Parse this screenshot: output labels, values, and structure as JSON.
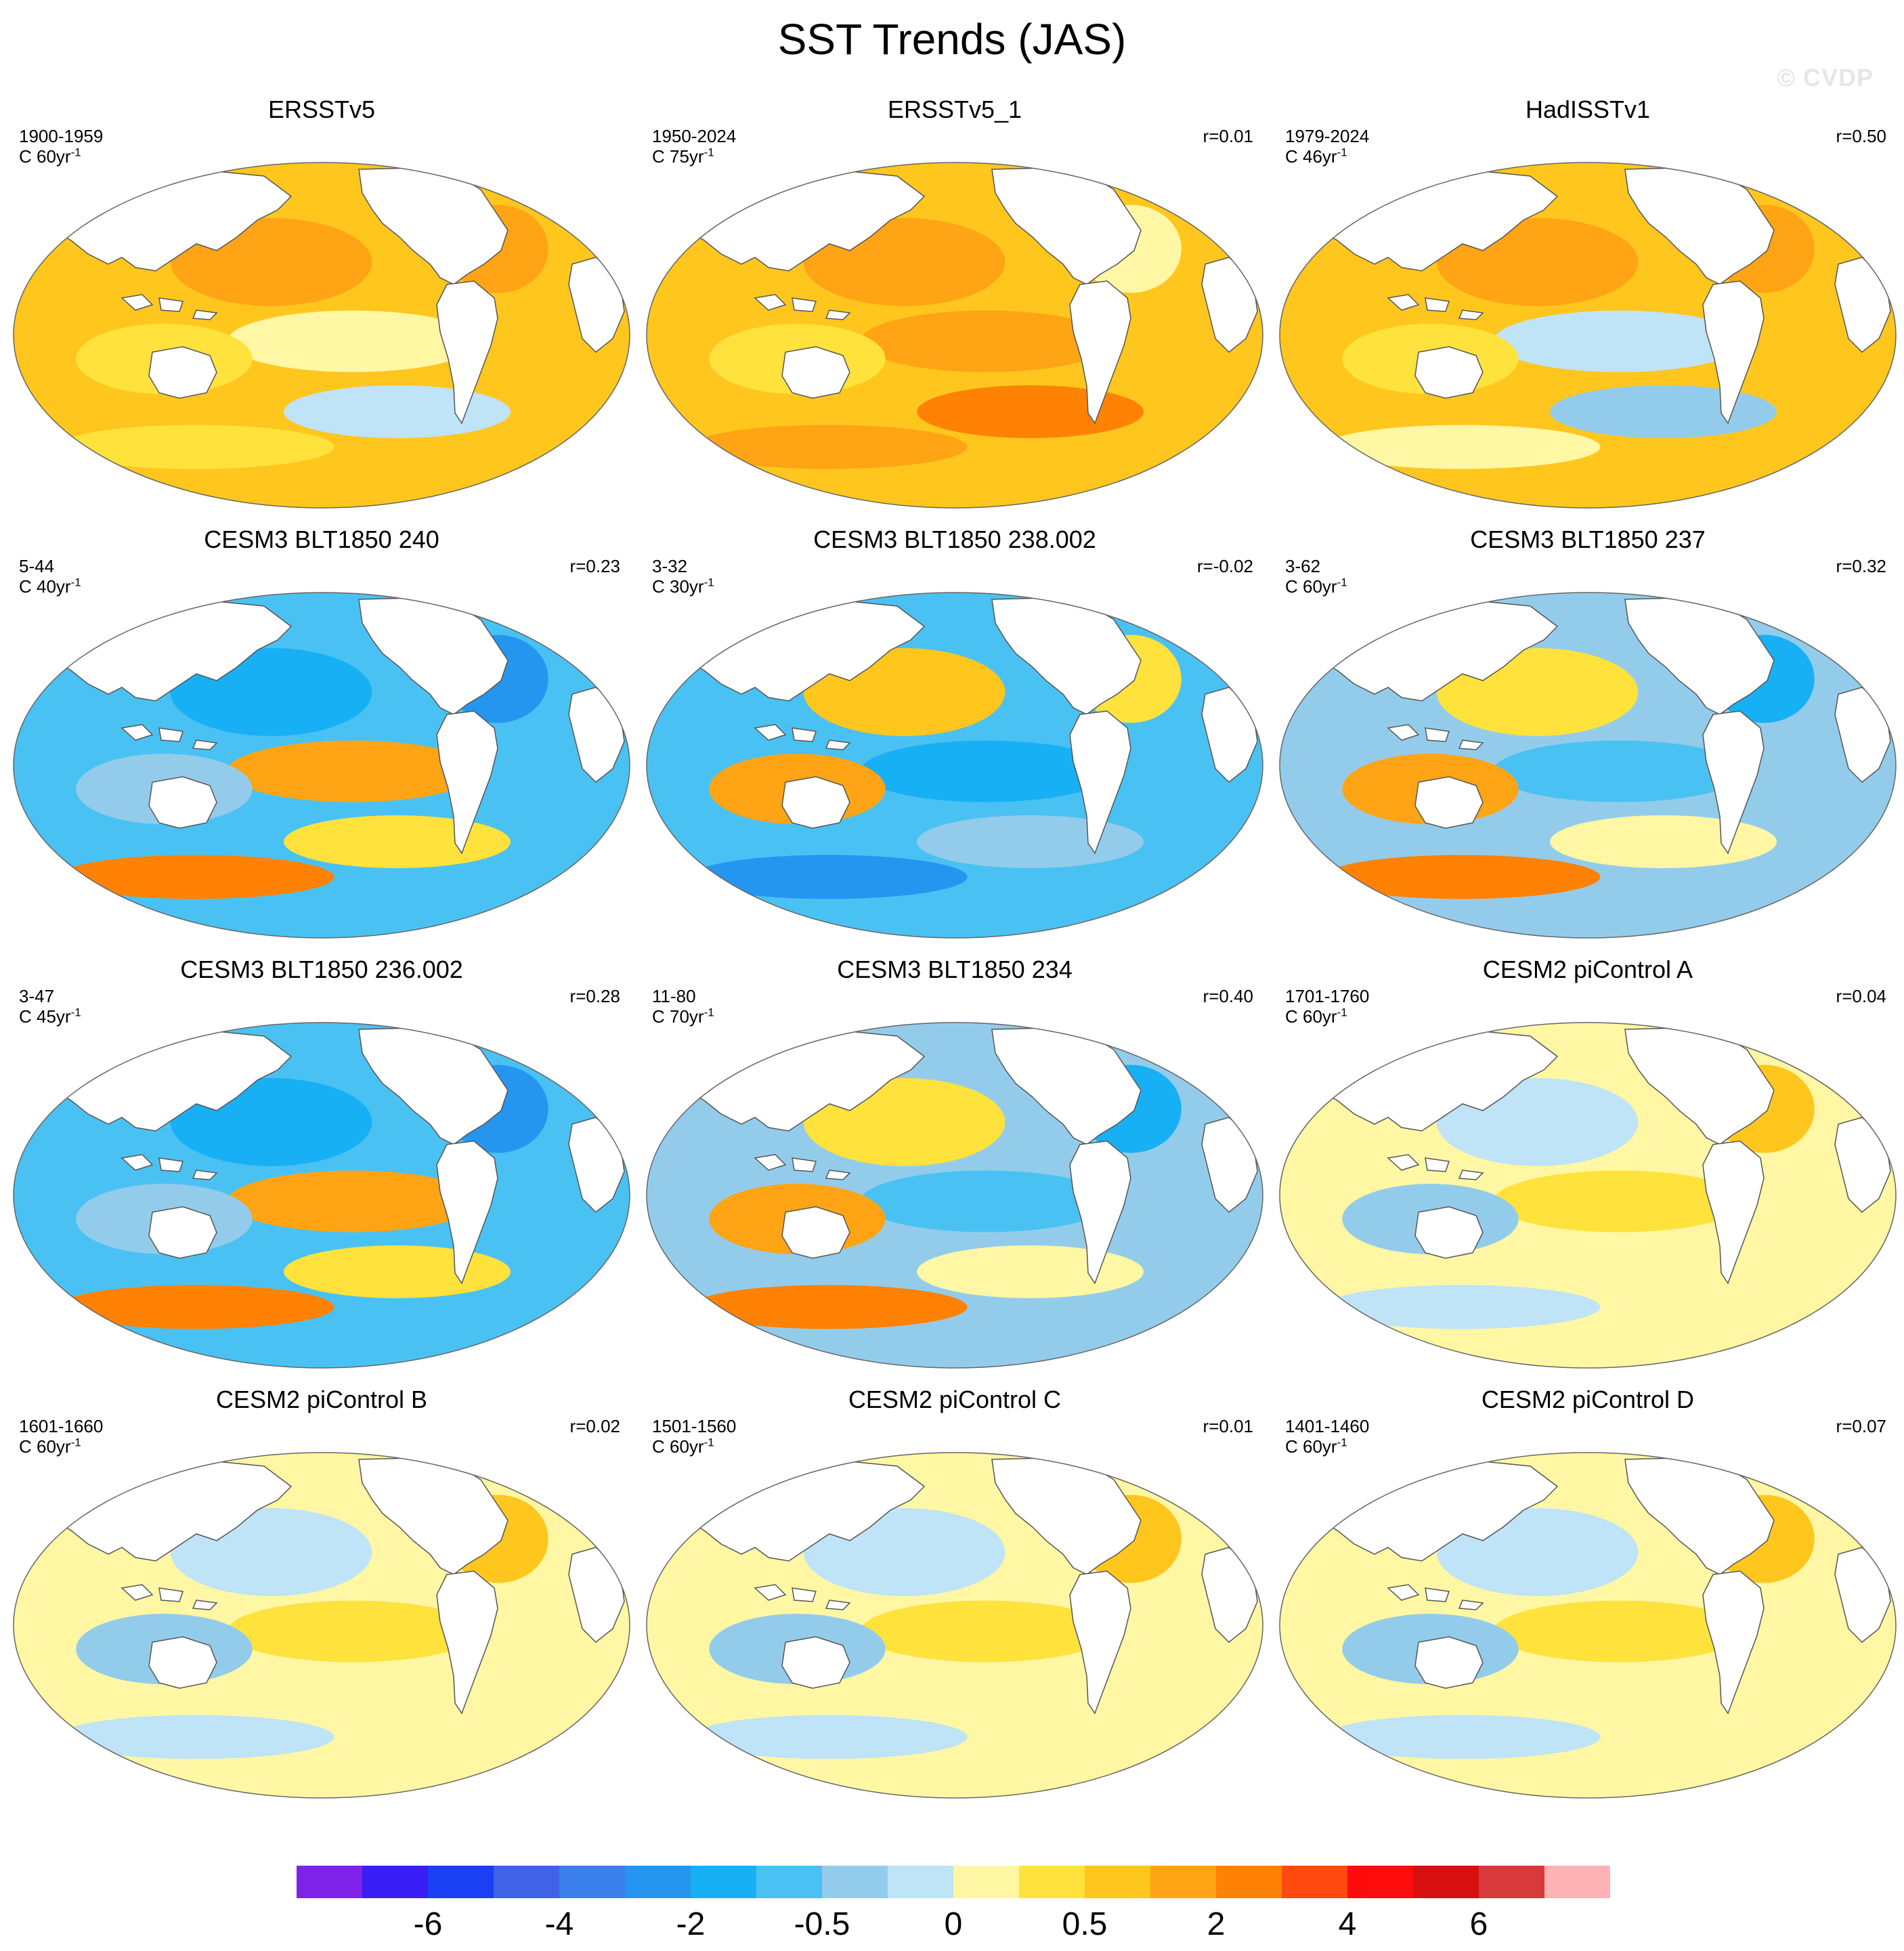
{
  "title": "SST Trends (JAS)",
  "watermark": "© CVDP",
  "units_suffix": "yr",
  "units_exponent": "-1",
  "panels": [
    {
      "title": "ERSSTv5",
      "period": "1900-1959",
      "units": "C 60",
      "corr": "",
      "palette": "warm"
    },
    {
      "title": "ERSSTv5_1",
      "period": "1950-2024",
      "units": "C 75",
      "corr": "r=0.01",
      "palette": "warm2"
    },
    {
      "title": "HadISSTv1",
      "period": "1979-2024",
      "units": "C 46",
      "corr": "r=0.50",
      "palette": "warm3"
    },
    {
      "title": "CESM3 BLT1850 240",
      "period": "5-44",
      "units": "C 40",
      "corr": "r=0.23",
      "palette": "cool"
    },
    {
      "title": "CESM3 BLT1850 238.002",
      "period": "3-32",
      "units": "C 30",
      "corr": "r=-0.02",
      "palette": "mixed"
    },
    {
      "title": "CESM3 BLT1850 237",
      "period": "3-62",
      "units": "C 60",
      "corr": "r=0.32",
      "palette": "mixedcool"
    },
    {
      "title": "CESM3 BLT1850 236.002",
      "period": "3-47",
      "units": "C 45",
      "corr": "r=0.28",
      "palette": "cool"
    },
    {
      "title": "CESM3 BLT1850 234",
      "period": "11-80",
      "units": "C 70",
      "corr": "r=0.40",
      "palette": "mixedcool"
    },
    {
      "title": "CESM2 piControl A",
      "period": "1701-1760",
      "units": "C 60",
      "corr": "r=0.04",
      "palette": "pale"
    },
    {
      "title": "CESM2 piControl B",
      "period": "1601-1660",
      "units": "C 60",
      "corr": "r=0.02",
      "palette": "pale"
    },
    {
      "title": "CESM2 piControl C",
      "period": "1501-1560",
      "units": "C 60",
      "corr": "r=0.01",
      "palette": "pale"
    },
    {
      "title": "CESM2 piControl D",
      "period": "1401-1460",
      "units": "C 60",
      "corr": "r=0.07",
      "palette": "pale"
    }
  ],
  "colorbar": {
    "colors": [
      "#7f22e8",
      "#3a1ef5",
      "#1b3ff2",
      "#3f62e6",
      "#3b7fea",
      "#2596f0",
      "#18b0f5",
      "#4ac1f3",
      "#93cceb",
      "#bfe3f7",
      "#fff7a3",
      "#ffe23c",
      "#ffc61e",
      "#ffa414",
      "#ff8204",
      "#ff4a0f",
      "#ff0b0b",
      "#d60f0f",
      "#d8393b",
      "#ffb2b5"
    ],
    "labels": [
      "-6",
      "-4",
      "-2",
      "-0.5",
      "0",
      "0.5",
      "2",
      "4",
      "6"
    ],
    "label_boundaries": [
      2,
      4,
      6,
      8,
      10,
      12,
      14,
      16,
      18
    ]
  },
  "continent_color": "#ffffff",
  "ocean_palettes": {
    "warm": {
      "base": "#ffc61e",
      "blobs": [
        "#ffa414",
        "#fff7a3",
        "#ffe23c",
        "#bfe3f7",
        "#ffa414",
        "#ffe23c"
      ]
    },
    "warm2": {
      "base": "#ffc61e",
      "blobs": [
        "#ffa414",
        "#ffa414",
        "#ffe23c",
        "#ff8204",
        "#fff7a3",
        "#ffa414"
      ]
    },
    "warm3": {
      "base": "#ffc61e",
      "blobs": [
        "#ffa414",
        "#bfe3f7",
        "#ffe23c",
        "#93cceb",
        "#ffa414",
        "#fff7a3"
      ]
    },
    "cool": {
      "base": "#4ac1f3",
      "blobs": [
        "#18b0f5",
        "#ffa414",
        "#93cceb",
        "#ffe23c",
        "#2596f0",
        "#ff8204"
      ]
    },
    "mixed": {
      "base": "#4ac1f3",
      "blobs": [
        "#ffc61e",
        "#18b0f5",
        "#ffa414",
        "#93cceb",
        "#ffe23c",
        "#2596f0"
      ]
    },
    "mixedcool": {
      "base": "#93cceb",
      "blobs": [
        "#ffe23c",
        "#4ac1f3",
        "#ffa414",
        "#fff7a3",
        "#18b0f5",
        "#ff8204"
      ]
    },
    "pale": {
      "base": "#fff7a3",
      "blobs": [
        "#bfe3f7",
        "#ffe23c",
        "#93cceb",
        "#fff7a3",
        "#ffc61e",
        "#bfe3f7"
      ]
    }
  }
}
